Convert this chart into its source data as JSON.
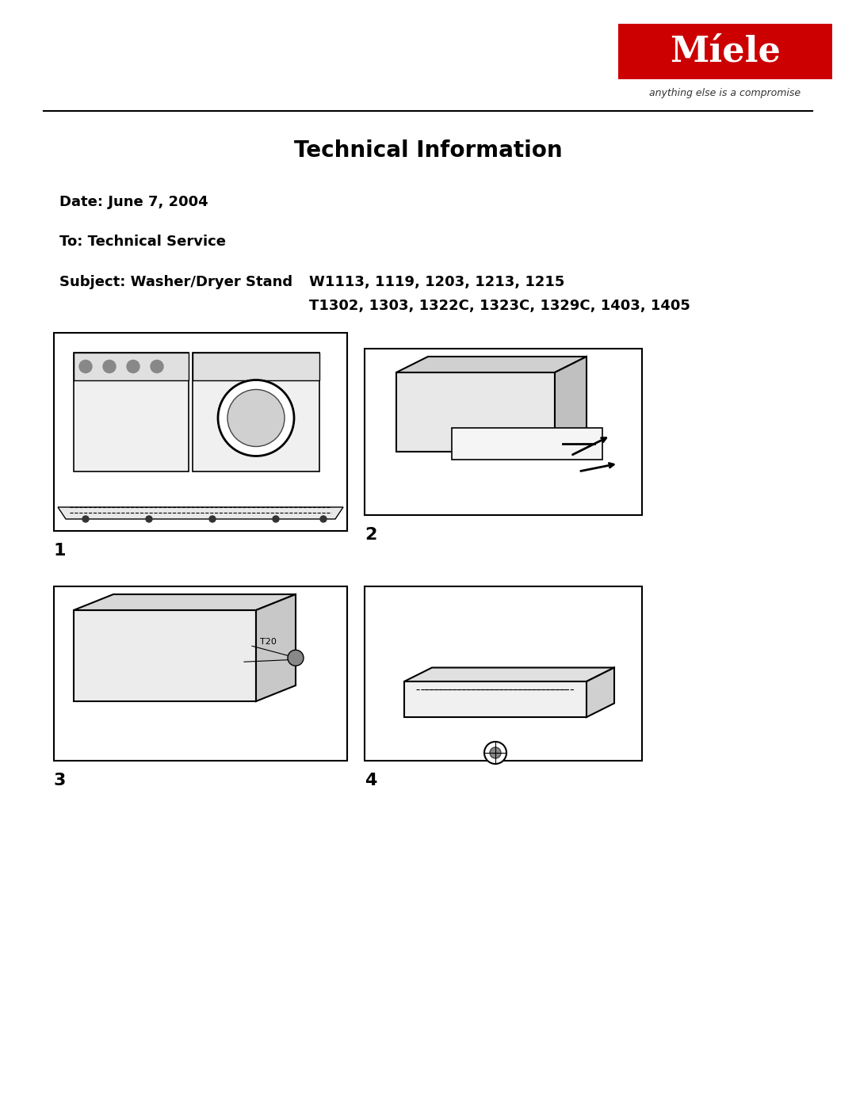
{
  "title": "Technical Information",
  "date_label": "Date: June 7, 2004",
  "to_label": "To: Technical Service",
  "subject_label": "Subject: Washer/Dryer Stand",
  "subject_models_line1": "W1113, 1119, 1203, 1213, 1215",
  "subject_models_line2": "T1302, 1303, 1322C, 1323C, 1329C, 1403, 1405",
  "miele_logo_text": "Míele",
  "miele_tagline": "anything else is a compromise",
  "miele_logo_color": "#CC0000",
  "fig_labels": [
    "1",
    "2",
    "3",
    "4"
  ],
  "bg_color": "#ffffff",
  "text_color": "#000000",
  "border_color": "#000000"
}
